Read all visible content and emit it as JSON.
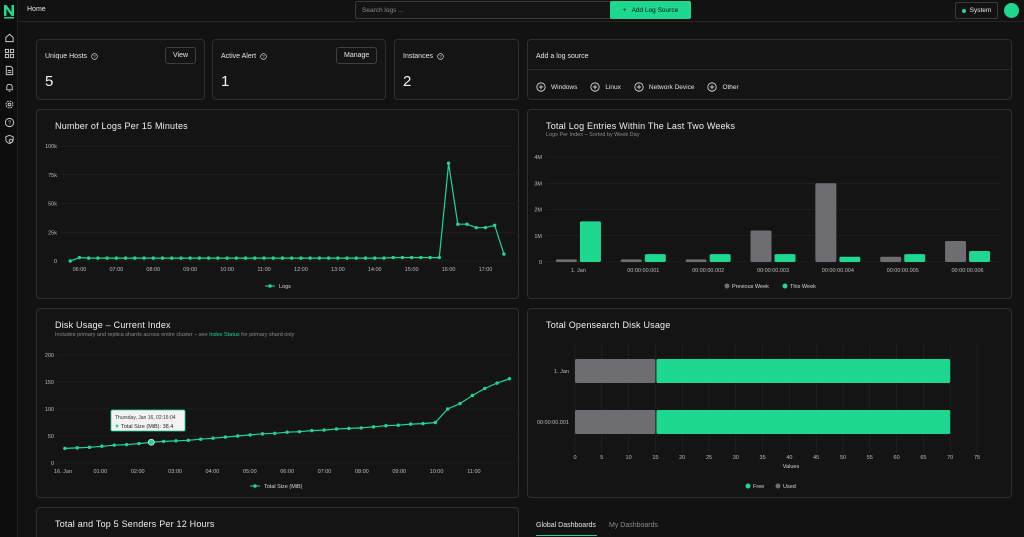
{
  "header": {
    "home": "Home",
    "search_placeholder": "Search logs ...",
    "add_log_source": "Add Log Source",
    "theme": "System"
  },
  "sidebar": {
    "icons": [
      "logo-icon",
      "home-icon",
      "dashboard-icon",
      "logs-icon",
      "alerts-icon",
      "settings-icon",
      "help-icon",
      "shield-icon"
    ]
  },
  "stats": {
    "unique_hosts": {
      "label": "Unique Hosts",
      "value": "5",
      "button": "View"
    },
    "active_alert": {
      "label": "Active Alert",
      "value": "1",
      "button": "Manage"
    },
    "instances": {
      "label": "Instances",
      "value": "2"
    }
  },
  "add_source": {
    "title": "Add a log source",
    "options": [
      "Windows",
      "Linux",
      "Network Device",
      "Other"
    ]
  },
  "charts": {
    "logs_per_15": {
      "title": "Number of Logs Per 15 Minutes",
      "legend": "Logs"
    },
    "log_entries": {
      "title": "Total Log Entries Within The Last Two Weeks",
      "subtitle": "Logs Per Index – Sorted by Week Day",
      "legend_prev": "Previous Week",
      "legend_this": "This Week"
    },
    "disk_usage": {
      "title": "Disk Usage – Current Index",
      "subtitle_pre": "Includes primary and replica shards across entire cluster – see ",
      "subtitle_link": "Index Status",
      "subtitle_post": " for primary shard only",
      "legend": "Total Size (MiB)",
      "tooltip_date": "Thursday, Jan 16, 02:16:04",
      "tooltip_value": "Total Size (MiB): 38.4"
    },
    "opensearch_disk": {
      "title": "Total Opensearch Disk Usage",
      "xlabel": "Values",
      "legend_free": "Free",
      "legend_used": "Used"
    },
    "senders": {
      "title": "Total and Top 5 Senders Per 12 Hours"
    }
  },
  "dashboards": {
    "tabs": [
      "Global Dashboards",
      "My Dashboards"
    ]
  },
  "colors": {
    "accent": "#1ed88f",
    "gray": "#6e6e72",
    "background": "#121212",
    "card": "#141414"
  },
  "chart_data": [
    {
      "type": "line",
      "title": "Number of Logs Per 15 Minutes",
      "series": [
        {
          "name": "Logs",
          "values": [
            0,
            3000,
            2500,
            2500,
            2500,
            2500,
            2500,
            2500,
            2500,
            2500,
            2500,
            2500,
            2500,
            2500,
            2500,
            2500,
            2500,
            2500,
            2500,
            2500,
            2500,
            2500,
            2500,
            2500,
            2500,
            2500,
            2500,
            2500,
            2500,
            2500,
            2500,
            2500,
            2500,
            2500,
            2500,
            3000,
            3000,
            3000,
            3000,
            3000,
            3000,
            85000,
            32000,
            32000,
            29000,
            29000,
            31000,
            6000
          ]
        }
      ],
      "x_start_hours": 5.75,
      "x_step_hours": 0.25,
      "x_ticks": [
        "06:00",
        "07:00",
        "08:00",
        "09:00",
        "10:00",
        "11:00",
        "12:00",
        "13:00",
        "14:00",
        "15:00",
        "16:00",
        "17:00"
      ],
      "y_ticks": [
        "0",
        "25k",
        "50k",
        "75k",
        "100k"
      ],
      "ylim": [
        0,
        100000
      ],
      "grid": true,
      "legend": "bottom-center"
    },
    {
      "type": "bar",
      "title": "Total Log Entries Within The Last Two Weeks",
      "categories": [
        "1. Jan",
        "00:00:00.001",
        "00:00:00.002",
        "00:00:00.003",
        "00:00:00.004",
        "00:00:00.005",
        "00:00:00.006"
      ],
      "series": [
        {
          "name": "Previous Week",
          "values": [
            100000,
            100000,
            100000,
            1200000,
            3000000,
            200000,
            800000
          ]
        },
        {
          "name": "This Week",
          "values": [
            1550000,
            300000,
            300000,
            300000,
            200000,
            300000,
            420000
          ]
        }
      ],
      "y_ticks": [
        "0",
        "1M",
        "2M",
        "3M",
        "4M"
      ],
      "ylim": [
        0,
        4000000
      ],
      "grid": true,
      "legend": "bottom-center"
    },
    {
      "type": "line",
      "title": "Disk Usage – Current Index",
      "series": [
        {
          "name": "Total Size (MiB)",
          "values": [
            27,
            28,
            29,
            31,
            33,
            34,
            36,
            38.4,
            40,
            41,
            42,
            44,
            46,
            48,
            50,
            52,
            54,
            55,
            57,
            58,
            60,
            61,
            63,
            64,
            65,
            67,
            69,
            70,
            72,
            73,
            75,
            100,
            110,
            125,
            138,
            148,
            156
          ]
        }
      ],
      "x_ticks": [
        "16. Jan",
        "01:00",
        "02:00",
        "03:00",
        "04:00",
        "05:00",
        "06:00",
        "07:00",
        "08:00",
        "09:00",
        "10:00",
        "11:00"
      ],
      "y_ticks": [
        "0",
        "50",
        "100",
        "150",
        "200"
      ],
      "ylim": [
        0,
        200
      ],
      "grid": true,
      "legend": "bottom-center"
    },
    {
      "type": "bar",
      "orientation": "horizontal",
      "stacked": true,
      "title": "Total Opensearch Disk Usage",
      "categories": [
        "1. Jan",
        "00:00:00.001"
      ],
      "series": [
        {
          "name": "Used",
          "values": [
            15,
            15
          ]
        },
        {
          "name": "Free",
          "values": [
            55,
            55
          ]
        }
      ],
      "xlabel": "Values",
      "x_ticks": [
        "0",
        "5",
        "10",
        "15",
        "20",
        "25",
        "30",
        "35",
        "40",
        "45",
        "50",
        "55",
        "60",
        "65",
        "70",
        "75"
      ],
      "xlim": [
        0,
        75
      ],
      "grid": true,
      "legend": "bottom-center"
    }
  ]
}
